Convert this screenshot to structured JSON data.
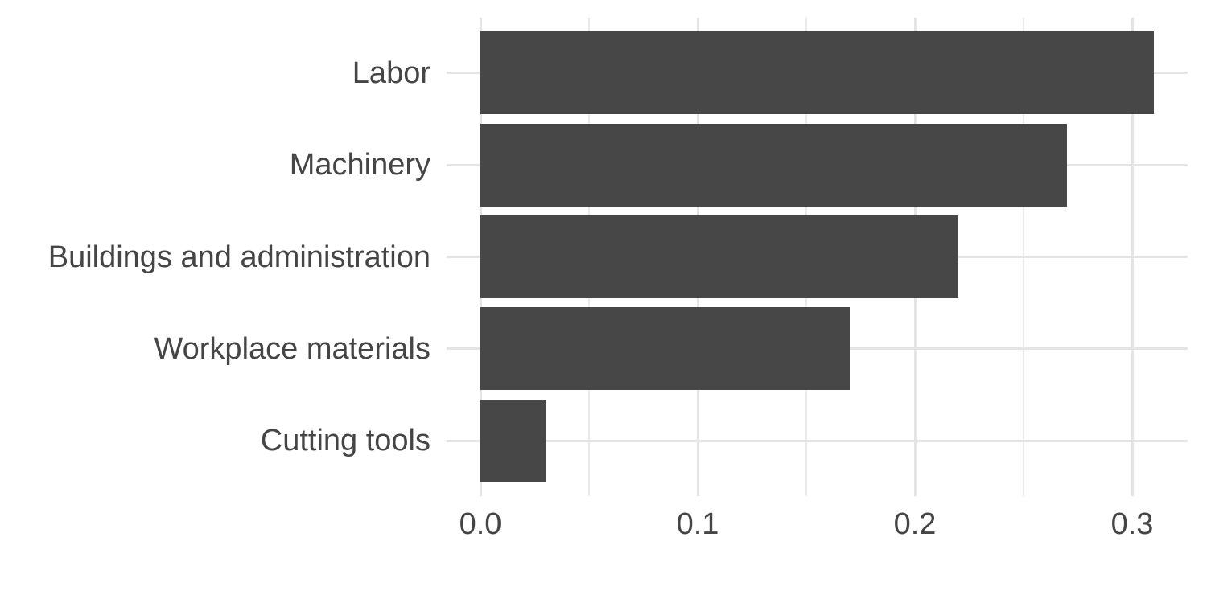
{
  "chart_data": {
    "type": "bar",
    "orientation": "horizontal",
    "title": "",
    "xlabel": "",
    "ylabel": "",
    "categories": [
      "Labor",
      "Machinery",
      "Buildings and administration",
      "Workplace materials",
      "Cutting tools"
    ],
    "values": [
      0.31,
      0.27,
      0.22,
      0.17,
      0.03
    ],
    "x_major_ticks": [
      0.0,
      0.1,
      0.2,
      0.3
    ],
    "x_tick_labels": [
      "0.0",
      "0.1",
      "0.2",
      "0.3"
    ],
    "x_minor_ticks": [
      0.05,
      0.15,
      0.25
    ],
    "xlim": [
      -0.0155,
      0.3255
    ],
    "grid": true,
    "legend": false,
    "colors": {
      "bar_fill": "#474747",
      "grid_major": "#e4e4e4",
      "grid_minor": "#eaeaea",
      "axis_text": "#454545",
      "background": "#ffffff"
    }
  }
}
